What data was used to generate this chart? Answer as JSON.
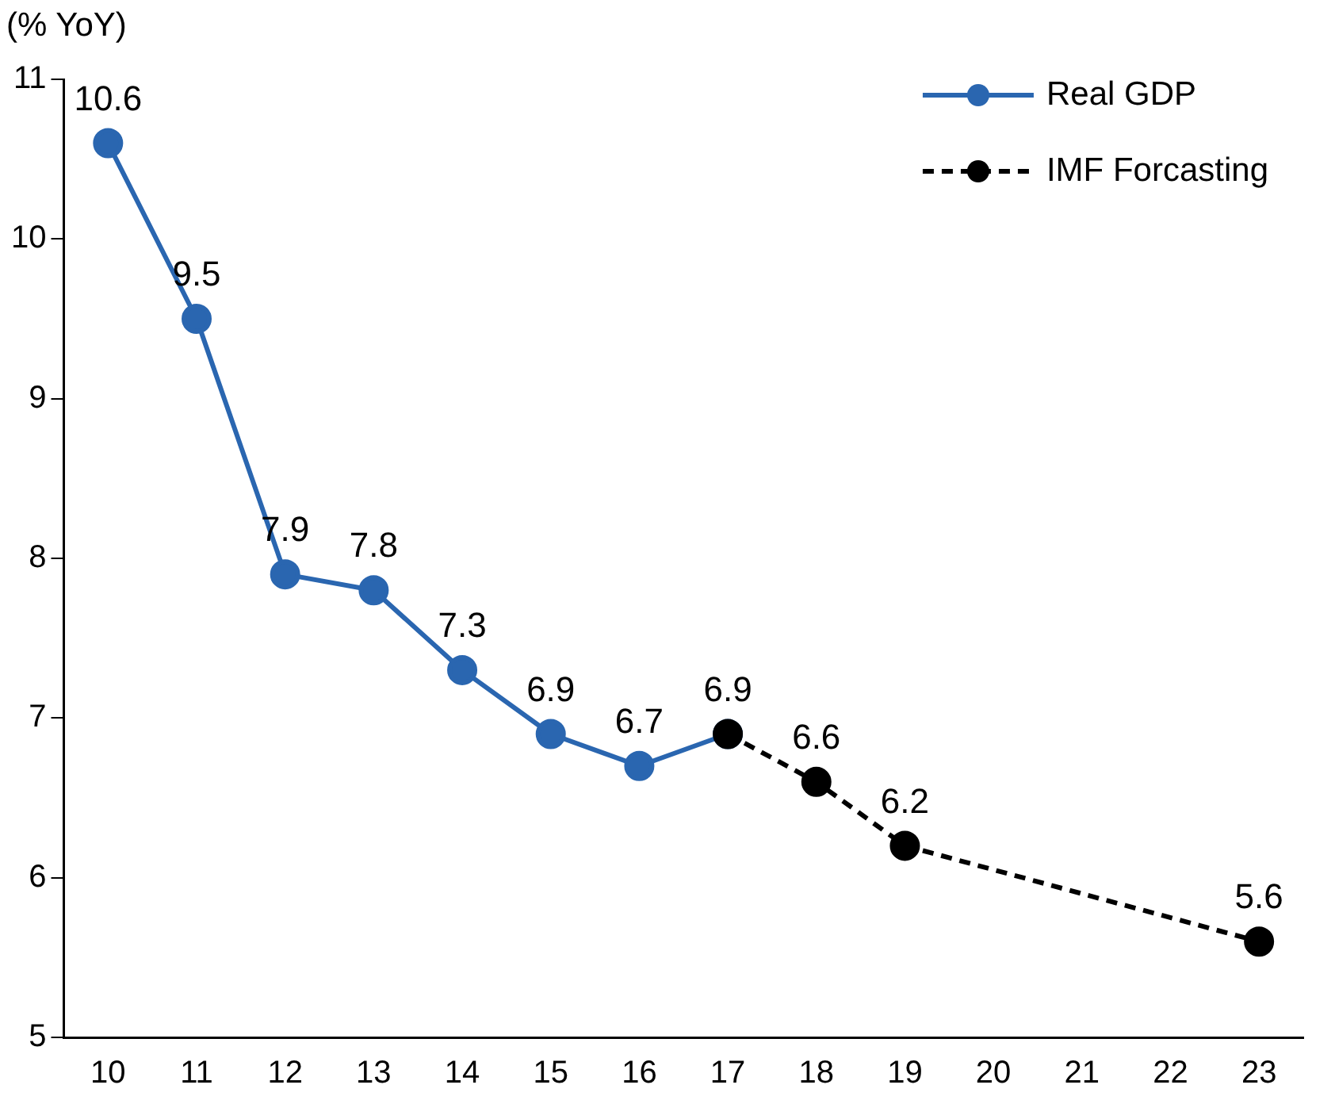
{
  "chart_data": {
    "type": "line",
    "ylabel": "(% YoY)",
    "categories": [
      "10",
      "11",
      "12",
      "13",
      "14",
      "15",
      "16",
      "17",
      "18",
      "19",
      "20",
      "21",
      "22",
      "23"
    ],
    "series": [
      {
        "name": "Real GDP",
        "color": "#2a66b0",
        "line_style": "solid",
        "values": [
          10.6,
          9.5,
          7.9,
          7.8,
          7.3,
          6.9,
          6.7,
          6.9,
          null,
          null,
          null,
          null,
          null,
          null
        ],
        "value_labels": [
          "10.6",
          "9.5",
          "7.9",
          "7.8",
          "7.3",
          "6.9",
          "6.7",
          "6.9",
          null,
          null,
          null,
          null,
          null,
          null
        ]
      },
      {
        "name": "IMF Forcasting",
        "color": "#000000",
        "line_style": "dashed",
        "values": [
          null,
          null,
          null,
          null,
          null,
          null,
          null,
          6.9,
          6.6,
          6.2,
          null,
          null,
          null,
          5.6
        ],
        "value_labels": [
          null,
          null,
          null,
          null,
          null,
          null,
          null,
          null,
          "6.6",
          "6.2",
          null,
          null,
          null,
          "5.6"
        ]
      }
    ],
    "ylim": [
      5,
      11
    ],
    "yticks": [
      5,
      6,
      7,
      8,
      9,
      10,
      11
    ],
    "grid": false,
    "legend": "top right",
    "marker": "circle"
  }
}
